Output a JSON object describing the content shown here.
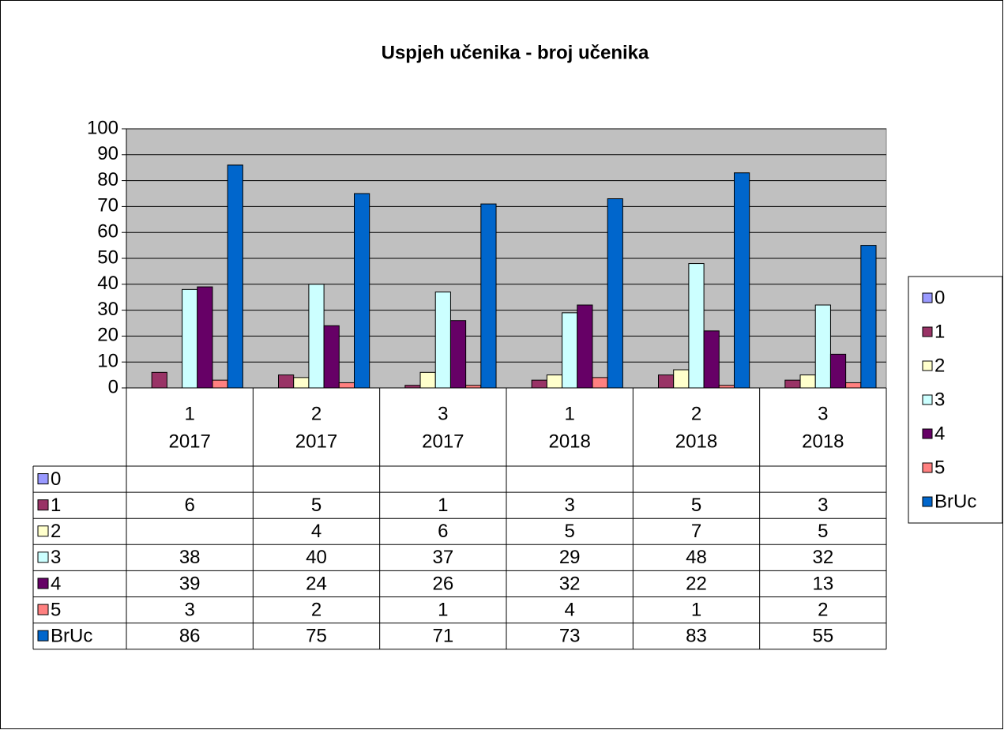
{
  "chart_data": {
    "type": "bar",
    "title": "Uspjeh učenika - broj učenika",
    "categories": [
      [
        "1",
        "2017"
      ],
      [
        "2",
        "2017"
      ],
      [
        "3",
        "2017"
      ],
      [
        "1",
        "2018"
      ],
      [
        "2",
        "2018"
      ],
      [
        "3",
        "2018"
      ]
    ],
    "series": [
      {
        "name": "0",
        "color": "#9999ff",
        "values": [
          null,
          null,
          null,
          null,
          null,
          null
        ]
      },
      {
        "name": "1",
        "color": "#993366",
        "values": [
          6,
          5,
          1,
          3,
          5,
          3
        ]
      },
      {
        "name": "2",
        "color": "#ffffcc",
        "values": [
          null,
          4,
          6,
          5,
          7,
          5
        ]
      },
      {
        "name": "3",
        "color": "#ccffff",
        "values": [
          38,
          40,
          37,
          29,
          48,
          32
        ]
      },
      {
        "name": "4",
        "color": "#660066",
        "values": [
          39,
          24,
          26,
          32,
          22,
          13
        ]
      },
      {
        "name": "5",
        "color": "#ff8080",
        "values": [
          3,
          2,
          1,
          4,
          1,
          2
        ]
      },
      {
        "name": "BrUc",
        "color": "#0066cc",
        "values": [
          86,
          75,
          71,
          73,
          83,
          55
        ]
      }
    ],
    "ylim": [
      0,
      100
    ],
    "yticks": [
      0,
      10,
      20,
      30,
      40,
      50,
      60,
      70,
      80,
      90,
      100
    ],
    "grid": true,
    "legend": "right",
    "plot_background": "#c0c0c0"
  }
}
